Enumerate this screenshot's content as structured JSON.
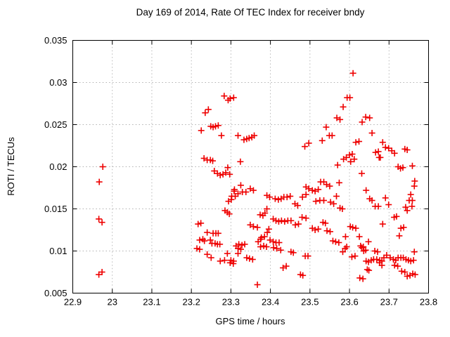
{
  "window": {
    "background": "#ffffff"
  },
  "chart_data": {
    "type": "scatter",
    "title": "Day 169 of 2014, Rate Of TEC Index for receiver bndy",
    "xlabel": "GPS time / hours",
    "ylabel": "ROTI / TECUs",
    "xlim": [
      22.9,
      23.8
    ],
    "ylim": [
      0.005,
      0.035
    ],
    "grid": true,
    "legend": "none",
    "border_color": "#000000",
    "grid_color": "#b0b0b0",
    "marker": {
      "shape": "plus",
      "color": "#ee0000",
      "size": 9,
      "stroke": 1.6
    },
    "xticks": {
      "values": [
        22.9,
        23.0,
        23.1,
        23.2,
        23.3,
        23.4,
        23.5,
        23.6,
        23.7,
        23.8
      ],
      "labels": [
        "22.9",
        "23",
        "23.1",
        "23.2",
        "23.3",
        "23.4",
        "23.5",
        "23.6",
        "23.7",
        "23.8"
      ]
    },
    "yticks": {
      "values": [
        0.005,
        0.01,
        0.015,
        0.02,
        0.025,
        0.03,
        0.035
      ],
      "labels": [
        "0.005",
        "0.01",
        "0.015",
        "0.02",
        "0.025",
        "0.03",
        "0.035"
      ]
    },
    "series": [
      {
        "name": "ROTI",
        "points": [
          [
            22.966,
            0.0072
          ],
          [
            22.966,
            0.0138
          ],
          [
            22.967,
            0.0182
          ],
          [
            22.974,
            0.0075
          ],
          [
            22.974,
            0.0134
          ],
          [
            22.976,
            0.02
          ],
          [
            23.214,
            0.0103
          ],
          [
            23.217,
            0.0132
          ],
          [
            23.221,
            0.0102
          ],
          [
            23.221,
            0.0113
          ],
          [
            23.224,
            0.0133
          ],
          [
            23.225,
            0.0243
          ],
          [
            23.229,
            0.0114
          ],
          [
            23.232,
            0.021
          ],
          [
            23.233,
            0.0112
          ],
          [
            23.235,
            0.0264
          ],
          [
            23.24,
            0.0096
          ],
          [
            23.24,
            0.0122
          ],
          [
            23.24,
            0.0208
          ],
          [
            23.243,
            0.0268
          ],
          [
            23.248,
            0.0113
          ],
          [
            23.248,
            0.0208
          ],
          [
            23.249,
            0.0248
          ],
          [
            23.25,
            0.0092
          ],
          [
            23.252,
            0.0109
          ],
          [
            23.254,
            0.0207
          ],
          [
            23.255,
            0.0121
          ],
          [
            23.255,
            0.0247
          ],
          [
            23.258,
            0.0195
          ],
          [
            23.26,
            0.0109
          ],
          [
            23.261,
            0.0248
          ],
          [
            23.262,
            0.0121
          ],
          [
            23.266,
            0.0108
          ],
          [
            23.266,
            0.0192
          ],
          [
            23.268,
            0.0121
          ],
          [
            23.268,
            0.0249
          ],
          [
            23.272,
            0.0108
          ],
          [
            23.273,
            0.0088
          ],
          [
            23.273,
            0.019
          ],
          [
            23.276,
            0.0237
          ],
          [
            23.28,
            0.0191
          ],
          [
            23.283,
            0.0284
          ],
          [
            23.284,
            0.0089
          ],
          [
            23.285,
            0.0148
          ],
          [
            23.287,
            0.0193
          ],
          [
            23.291,
            0.0097
          ],
          [
            23.291,
            0.0146
          ],
          [
            23.292,
            0.0199
          ],
          [
            23.293,
            0.0279
          ],
          [
            23.294,
            0.0159
          ],
          [
            23.296,
            0.0144
          ],
          [
            23.297,
            0.0191
          ],
          [
            23.298,
            0.0086
          ],
          [
            23.298,
            0.0281
          ],
          [
            23.3,
            0.0089
          ],
          [
            23.301,
            0.0161
          ],
          [
            23.302,
            0.0165
          ],
          [
            23.306,
            0.0085
          ],
          [
            23.307,
            0.0088
          ],
          [
            23.307,
            0.0282
          ],
          [
            23.308,
            0.0171
          ],
          [
            23.309,
            0.0173
          ],
          [
            23.311,
            0.0165
          ],
          [
            23.313,
            0.0106
          ],
          [
            23.318,
            0.0097
          ],
          [
            23.318,
            0.0103
          ],
          [
            23.318,
            0.0168
          ],
          [
            23.318,
            0.0237
          ],
          [
            23.32,
            0.0108
          ],
          [
            23.324,
            0.0206
          ],
          [
            23.325,
            0.0102
          ],
          [
            23.325,
            0.0178
          ],
          [
            23.328,
            0.0107
          ],
          [
            23.329,
            0.017
          ],
          [
            23.333,
            0.0232
          ],
          [
            23.335,
            0.0108
          ],
          [
            23.338,
            0.017
          ],
          [
            23.34,
            0.0092
          ],
          [
            23.34,
            0.0233
          ],
          [
            23.346,
            0.0234
          ],
          [
            23.347,
            0.0091
          ],
          [
            23.349,
            0.0131
          ],
          [
            23.349,
            0.0174
          ],
          [
            23.353,
            0.0235
          ],
          [
            23.355,
            0.009
          ],
          [
            23.357,
            0.0129
          ],
          [
            23.357,
            0.0172
          ],
          [
            23.359,
            0.0237
          ],
          [
            23.367,
            0.006
          ],
          [
            23.367,
            0.0128
          ],
          [
            23.369,
            0.0111
          ],
          [
            23.374,
            0.0143
          ],
          [
            23.375,
            0.0105
          ],
          [
            23.375,
            0.0114
          ],
          [
            23.377,
            0.0116
          ],
          [
            23.381,
            0.0142
          ],
          [
            23.383,
            0.0106
          ],
          [
            23.385,
            0.0117
          ],
          [
            23.386,
            0.0145
          ],
          [
            23.39,
            0.0105
          ],
          [
            23.391,
            0.015
          ],
          [
            23.391,
            0.0166
          ],
          [
            23.392,
            0.0122
          ],
          [
            23.396,
            0.0126
          ],
          [
            23.398,
            0.0164
          ],
          [
            23.399,
            0.0113
          ],
          [
            23.407,
            0.0111
          ],
          [
            23.407,
            0.0138
          ],
          [
            23.408,
            0.0104
          ],
          [
            23.412,
            0.0162
          ],
          [
            23.414,
            0.011
          ],
          [
            23.414,
            0.0136
          ],
          [
            23.416,
            0.0103
          ],
          [
            23.42,
            0.0161
          ],
          [
            23.421,
            0.0135
          ],
          [
            23.422,
            0.011
          ],
          [
            23.426,
            0.0101
          ],
          [
            23.427,
            0.0162
          ],
          [
            23.428,
            0.0136
          ],
          [
            23.432,
            0.008
          ],
          [
            23.434,
            0.0164
          ],
          [
            23.436,
            0.0135
          ],
          [
            23.44,
            0.0082
          ],
          [
            23.442,
            0.0164
          ],
          [
            23.444,
            0.0136
          ],
          [
            23.45,
            0.0165
          ],
          [
            23.452,
            0.0099
          ],
          [
            23.452,
            0.0136
          ],
          [
            23.458,
            0.0098
          ],
          [
            23.462,
            0.0156
          ],
          [
            23.463,
            0.0131
          ],
          [
            23.469,
            0.0154
          ],
          [
            23.471,
            0.0132
          ],
          [
            23.476,
            0.0072
          ],
          [
            23.48,
            0.014
          ],
          [
            23.481,
            0.0164
          ],
          [
            23.482,
            0.0071
          ],
          [
            23.487,
            0.0224
          ],
          [
            23.488,
            0.0094
          ],
          [
            23.49,
            0.0139
          ],
          [
            23.49,
            0.0167
          ],
          [
            23.49,
            0.0176
          ],
          [
            23.495,
            0.0094
          ],
          [
            23.497,
            0.0174
          ],
          [
            23.497,
            0.0228
          ],
          [
            23.506,
            0.0127
          ],
          [
            23.506,
            0.0172
          ],
          [
            23.513,
            0.0125
          ],
          [
            23.513,
            0.0171
          ],
          [
            23.515,
            0.0159
          ],
          [
            23.521,
            0.0126
          ],
          [
            23.521,
            0.0173
          ],
          [
            23.525,
            0.016
          ],
          [
            23.527,
            0.0182
          ],
          [
            23.531,
            0.0231
          ],
          [
            23.533,
            0.0134
          ],
          [
            23.535,
            0.016
          ],
          [
            23.535,
            0.0182
          ],
          [
            23.539,
            0.0133
          ],
          [
            23.541,
            0.0247
          ],
          [
            23.542,
            0.0179
          ],
          [
            23.543,
            0.0124
          ],
          [
            23.549,
            0.0237
          ],
          [
            23.55,
            0.0177
          ],
          [
            23.551,
            0.0123
          ],
          [
            23.552,
            0.0158
          ],
          [
            23.556,
            0.0237
          ],
          [
            23.558,
            0.0112
          ],
          [
            23.56,
            0.0156
          ],
          [
            23.565,
            0.0111
          ],
          [
            23.567,
            0.0165
          ],
          [
            23.568,
            0.0258
          ],
          [
            23.57,
            0.0202
          ],
          [
            23.573,
            0.011
          ],
          [
            23.574,
            0.0181
          ],
          [
            23.576,
            0.0151
          ],
          [
            23.576,
            0.0256
          ],
          [
            23.582,
            0.015
          ],
          [
            23.583,
            0.0099
          ],
          [
            23.584,
            0.0271
          ],
          [
            23.585,
            0.0209
          ],
          [
            23.589,
            0.0103
          ],
          [
            23.59,
            0.0117
          ],
          [
            23.592,
            0.0211
          ],
          [
            23.593,
            0.0105
          ],
          [
            23.594,
            0.0282
          ],
          [
            23.6,
            0.0214
          ],
          [
            23.601,
            0.0282
          ],
          [
            23.602,
            0.0129
          ],
          [
            23.603,
            0.0206
          ],
          [
            23.606,
            0.0093
          ],
          [
            23.607,
            0.0215
          ],
          [
            23.608,
            0.0128
          ],
          [
            23.609,
            0.0311
          ],
          [
            23.612,
            0.0209
          ],
          [
            23.614,
            0.0094
          ],
          [
            23.616,
            0.0127
          ],
          [
            23.616,
            0.0229
          ],
          [
            23.624,
            0.023
          ],
          [
            23.625,
            0.0117
          ],
          [
            23.626,
            0.0068
          ],
          [
            23.628,
            0.0106
          ],
          [
            23.631,
            0.0104
          ],
          [
            23.631,
            0.0192
          ],
          [
            23.632,
            0.0253
          ],
          [
            23.634,
            0.0067
          ],
          [
            23.635,
            0.0105
          ],
          [
            23.636,
            0.01
          ],
          [
            23.641,
            0.0101
          ],
          [
            23.641,
            0.0259
          ],
          [
            23.642,
            0.0088
          ],
          [
            23.642,
            0.0172
          ],
          [
            23.645,
            0.0078
          ],
          [
            23.648,
            0.0087
          ],
          [
            23.648,
            0.0111
          ],
          [
            23.649,
            0.0077
          ],
          [
            23.651,
            0.0162
          ],
          [
            23.651,
            0.0258
          ],
          [
            23.655,
            0.0089
          ],
          [
            23.657,
            0.016
          ],
          [
            23.657,
            0.024
          ],
          [
            23.661,
            0.009
          ],
          [
            23.664,
            0.01
          ],
          [
            23.665,
            0.0153
          ],
          [
            23.666,
            0.0217
          ],
          [
            23.669,
            0.009
          ],
          [
            23.671,
            0.0099
          ],
          [
            23.673,
            0.0153
          ],
          [
            23.673,
            0.0218
          ],
          [
            23.675,
            0.0211
          ],
          [
            23.676,
            0.0086
          ],
          [
            23.676,
            0.0089
          ],
          [
            23.678,
            0.0211
          ],
          [
            23.682,
            0.0083
          ],
          [
            23.682,
            0.0088
          ],
          [
            23.684,
            0.0132
          ],
          [
            23.684,
            0.0229
          ],
          [
            23.687,
            0.0092
          ],
          [
            23.691,
            0.0163
          ],
          [
            23.691,
            0.0223
          ],
          [
            23.694,
            0.0095
          ],
          [
            23.699,
            0.0155
          ],
          [
            23.699,
            0.0222
          ],
          [
            23.703,
            0.0092
          ],
          [
            23.707,
            0.0219
          ],
          [
            23.711,
            0.009
          ],
          [
            23.713,
            0.014
          ],
          [
            23.714,
            0.0083
          ],
          [
            23.714,
            0.0216
          ],
          [
            23.717,
            0.0089
          ],
          [
            23.719,
            0.0141
          ],
          [
            23.722,
            0.0082
          ],
          [
            23.723,
            0.0092
          ],
          [
            23.723,
            0.02
          ],
          [
            23.726,
            0.0118
          ],
          [
            23.729,
            0.0198
          ],
          [
            23.73,
            0.0092
          ],
          [
            23.73,
            0.0127
          ],
          [
            23.732,
            0.0076
          ],
          [
            23.735,
            0.0199
          ],
          [
            23.736,
            0.0092
          ],
          [
            23.737,
            0.0128
          ],
          [
            23.74,
            0.0075
          ],
          [
            23.74,
            0.0221
          ],
          [
            23.742,
            0.0152
          ],
          [
            23.743,
            0.009
          ],
          [
            23.746,
            0.007
          ],
          [
            23.746,
            0.0148
          ],
          [
            23.746,
            0.022
          ],
          [
            23.749,
            0.0089
          ],
          [
            23.751,
            0.016
          ],
          [
            23.753,
            0.0071
          ],
          [
            23.755,
            0.0088
          ],
          [
            23.755,
            0.0167
          ],
          [
            23.758,
            0.0153
          ],
          [
            23.759,
            0.016
          ],
          [
            23.759,
            0.0201
          ],
          [
            23.76,
            0.0073
          ],
          [
            23.762,
            0.0089
          ],
          [
            23.764,
            0.0099
          ],
          [
            23.764,
            0.0177
          ],
          [
            23.765,
            0.0183
          ],
          [
            23.766,
            0.0072
          ]
        ]
      }
    ]
  }
}
